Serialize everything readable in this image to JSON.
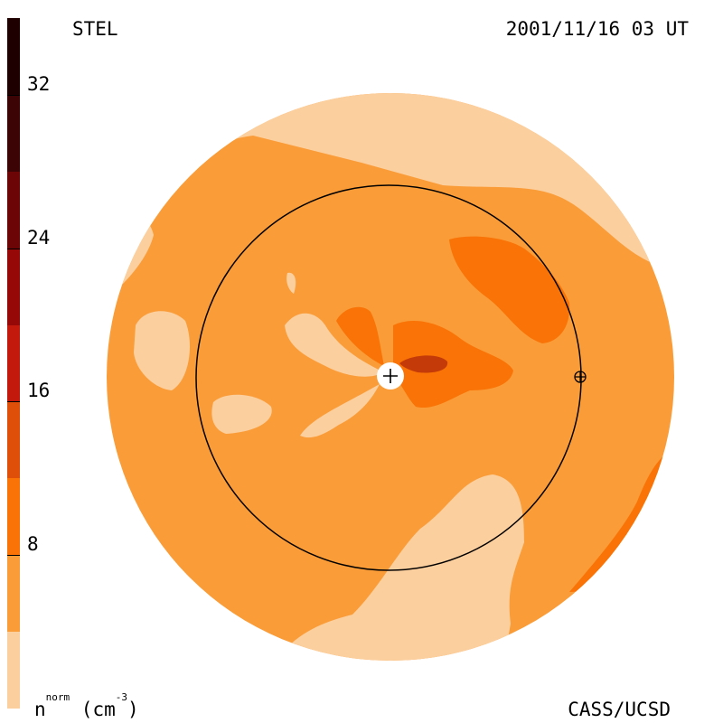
{
  "header": {
    "instrument": "STEL",
    "timestamp": "2001/11/16 03 UT"
  },
  "footer": {
    "unit_base": "n",
    "unit_sup": "norm",
    "unit_rest": " (cm",
    "unit_exp": "-3",
    "unit_close": ")",
    "credit": "CASS/UCSD"
  },
  "colorbar": {
    "ticks": [
      "8",
      "16",
      "24",
      "32"
    ],
    "colors": [
      "#fccf9e",
      "#fa9c38",
      "#f97306",
      "#e04f0a",
      "#c3180c",
      "#960808",
      "#6c0606",
      "#3c0404",
      "#1e0000"
    ]
  },
  "map": {
    "background_color": "#fa9c38",
    "low_color": "#fccf9e",
    "mid_color": "#f97306",
    "high_color": "#c43b09"
  }
}
